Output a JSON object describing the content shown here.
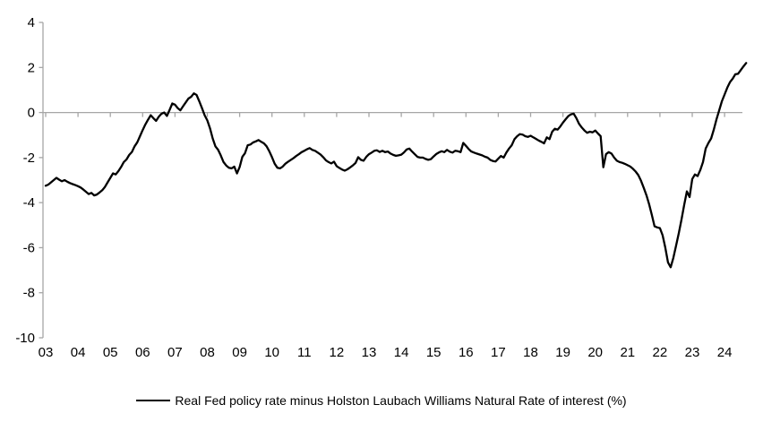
{
  "chart_data": {
    "type": "line",
    "title": "",
    "xlabel": "",
    "ylabel": "",
    "ylim": [
      -10,
      4
    ],
    "xlim": [
      2003.0,
      2024.75
    ],
    "grid": "zero-line-only",
    "legend_position": "bottom-center",
    "background_color": "#ffffff",
    "axis_color": "#a6a6a6",
    "text_color": "#000000",
    "y_ticks": {
      "values": [
        4,
        2,
        0,
        -2,
        -4,
        -6,
        -8,
        -10
      ],
      "labels": [
        "4",
        "2",
        "0",
        "-2",
        "-4",
        "-6",
        "-8",
        "-10"
      ]
    },
    "x_ticks": {
      "values": [
        2003,
        2004,
        2005,
        2006,
        2007,
        2008,
        2009,
        2010,
        2011,
        2012,
        2013,
        2014,
        2015,
        2016,
        2017,
        2018,
        2019,
        2020,
        2021,
        2022,
        2023,
        2024
      ],
      "labels": [
        "03",
        "04",
        "05",
        "06",
        "07",
        "08",
        "09",
        "10",
        "11",
        "12",
        "13",
        "14",
        "15",
        "16",
        "17",
        "18",
        "19",
        "20",
        "21",
        "22",
        "23",
        "24"
      ]
    },
    "series": [
      {
        "name": "Real Fed policy rate minus Holston Laubach Williams Natural Rate of interest (%)",
        "color": "#000000",
        "frequency": "monthly",
        "x_start_year": 2003,
        "points_per_year": 12,
        "values": [
          -3.25,
          -3.2,
          -3.1,
          -3.0,
          -2.9,
          -2.98,
          -3.05,
          -3.0,
          -3.07,
          -3.13,
          -3.18,
          -3.22,
          -3.27,
          -3.33,
          -3.42,
          -3.52,
          -3.62,
          -3.57,
          -3.68,
          -3.64,
          -3.55,
          -3.45,
          -3.3,
          -3.1,
          -2.9,
          -2.7,
          -2.75,
          -2.6,
          -2.42,
          -2.2,
          -2.08,
          -1.88,
          -1.75,
          -1.5,
          -1.32,
          -1.05,
          -0.78,
          -0.53,
          -0.32,
          -0.12,
          -0.25,
          -0.37,
          -0.18,
          -0.05,
          0.0,
          -0.15,
          0.12,
          0.4,
          0.35,
          0.2,
          0.1,
          0.28,
          0.45,
          0.62,
          0.7,
          0.85,
          0.78,
          0.5,
          0.2,
          -0.12,
          -0.35,
          -0.7,
          -1.15,
          -1.5,
          -1.65,
          -1.9,
          -2.2,
          -2.35,
          -2.45,
          -2.48,
          -2.4,
          -2.7,
          -2.42,
          -1.97,
          -1.8,
          -1.45,
          -1.42,
          -1.33,
          -1.28,
          -1.22,
          -1.3,
          -1.37,
          -1.5,
          -1.72,
          -1.98,
          -2.27,
          -2.45,
          -2.48,
          -2.4,
          -2.27,
          -2.18,
          -2.1,
          -2.02,
          -1.93,
          -1.85,
          -1.76,
          -1.7,
          -1.63,
          -1.58,
          -1.66,
          -1.7,
          -1.78,
          -1.86,
          -1.98,
          -2.12,
          -2.2,
          -2.26,
          -2.18,
          -2.38,
          -2.46,
          -2.53,
          -2.58,
          -2.52,
          -2.44,
          -2.35,
          -2.24,
          -1.98,
          -2.1,
          -2.14,
          -1.97,
          -1.85,
          -1.78,
          -1.7,
          -1.68,
          -1.75,
          -1.7,
          -1.76,
          -1.73,
          -1.82,
          -1.88,
          -1.92,
          -1.9,
          -1.87,
          -1.77,
          -1.64,
          -1.6,
          -1.73,
          -1.85,
          -1.97,
          -2.0,
          -2.0,
          -2.06,
          -2.1,
          -2.07,
          -1.95,
          -1.84,
          -1.77,
          -1.72,
          -1.76,
          -1.66,
          -1.74,
          -1.78,
          -1.7,
          -1.72,
          -1.76,
          -1.35,
          -1.48,
          -1.62,
          -1.73,
          -1.78,
          -1.82,
          -1.86,
          -1.9,
          -1.96,
          -2.0,
          -2.1,
          -2.15,
          -2.17,
          -2.05,
          -1.93,
          -2.0,
          -1.78,
          -1.6,
          -1.45,
          -1.18,
          -1.05,
          -0.96,
          -0.98,
          -1.05,
          -1.08,
          -1.03,
          -1.1,
          -1.17,
          -1.24,
          -1.3,
          -1.37,
          -1.1,
          -1.18,
          -0.85,
          -0.72,
          -0.76,
          -0.62,
          -0.45,
          -0.3,
          -0.16,
          -0.08,
          -0.05,
          -0.25,
          -0.5,
          -0.67,
          -0.8,
          -0.9,
          -0.85,
          -0.88,
          -0.8,
          -0.93,
          -1.05,
          -2.43,
          -1.85,
          -1.76,
          -1.82,
          -2.0,
          -2.14,
          -2.2,
          -2.23,
          -2.28,
          -2.34,
          -2.4,
          -2.5,
          -2.62,
          -2.78,
          -3.03,
          -3.35,
          -3.68,
          -4.08,
          -4.55,
          -5.05,
          -5.1,
          -5.13,
          -5.45,
          -6.0,
          -6.65,
          -6.87,
          -6.45,
          -5.9,
          -5.35,
          -4.75,
          -4.1,
          -3.5,
          -3.75,
          -2.95,
          -2.75,
          -2.82,
          -2.55,
          -2.2,
          -1.6,
          -1.35,
          -1.15,
          -0.75,
          -0.3,
          0.1,
          0.5,
          0.8,
          1.1,
          1.35,
          1.5,
          1.7,
          1.72,
          1.88,
          2.05,
          2.2
        ]
      }
    ]
  },
  "legend": {
    "label": "Real Fed policy rate minus Holston Laubach Williams Natural Rate of interest (%)"
  }
}
